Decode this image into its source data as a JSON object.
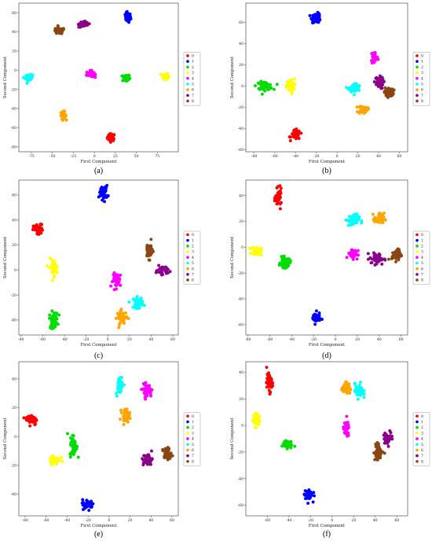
{
  "figure": {
    "subplot_count": 6,
    "captions": [
      "(a)",
      "(b)",
      "(c)",
      "(d)",
      "(e)",
      "(f)"
    ]
  },
  "chart_data": [
    {
      "caption": "(a)",
      "type": "scatter",
      "xlabel": "First Component",
      "ylabel": "Second Component",
      "xlim": [
        -90,
        100
      ],
      "ylim": [
        -85,
        70
      ],
      "xticks": [
        -75,
        -50,
        -25,
        0,
        25,
        50,
        75
      ],
      "yticks": [
        -80,
        -60,
        -40,
        -20,
        0,
        20,
        40,
        60
      ],
      "legend": {
        "position": "right",
        "entries": [
          "0",
          "1",
          "2",
          "3",
          "4",
          "5",
          "6",
          "7",
          "8"
        ]
      },
      "clusters": [
        {
          "label": "0",
          "center": [
            20,
            -70
          ],
          "spread": [
            4,
            3.5
          ],
          "count": 45
        },
        {
          "label": "1",
          "center": [
            40,
            55
          ],
          "spread": [
            3,
            4.5
          ],
          "count": 55
        },
        {
          "label": "2",
          "center": [
            38,
            -8
          ],
          "spread": [
            4,
            3.5
          ],
          "count": 50
        },
        {
          "label": "3",
          "center": [
            85,
            -6
          ],
          "spread": [
            3,
            3
          ],
          "count": 40
        },
        {
          "label": "4",
          "center": [
            -5,
            -4
          ],
          "spread": [
            4,
            3
          ],
          "count": 45
        },
        {
          "label": "5",
          "center": [
            -78,
            -8
          ],
          "spread": [
            4,
            3
          ],
          "count": 40
        },
        {
          "label": "6",
          "center": [
            -37,
            -47
          ],
          "spread": [
            3,
            3.5
          ],
          "count": 40
        },
        {
          "label": "7",
          "center": [
            -12,
            48
          ],
          "spread": [
            6,
            3
          ],
          "count": 50
        },
        {
          "label": "8",
          "center": [
            -42,
            41
          ],
          "spread": [
            6,
            3
          ],
          "count": 45
        }
      ]
    },
    {
      "caption": "(b)",
      "type": "scatter",
      "xlabel": "First Component",
      "ylabel": "Second Component",
      "xlim": [
        -88,
        68
      ],
      "ylim": [
        -62,
        78
      ],
      "xticks": [
        -80,
        -60,
        -40,
        -20,
        0,
        20,
        40,
        60
      ],
      "yticks": [
        -60,
        -40,
        -20,
        0,
        20,
        40,
        60
      ],
      "legend": {
        "position": "right",
        "entries": [
          "0",
          "1",
          "2",
          "3",
          "4",
          "5",
          "6",
          "7",
          "8"
        ]
      },
      "clusters": [
        {
          "label": "0",
          "center": [
            -40,
            -46
          ],
          "spread": [
            4,
            4
          ],
          "count": 45
        },
        {
          "label": "1",
          "center": [
            -20,
            64
          ],
          "spread": [
            4,
            4
          ],
          "count": 50
        },
        {
          "label": "2",
          "center": [
            -70,
            0
          ],
          "spread": [
            7,
            3.5
          ],
          "count": 55
        },
        {
          "label": "3",
          "center": [
            -45,
            0
          ],
          "spread": [
            3.5,
            6
          ],
          "count": 45
        },
        {
          "label": "4",
          "center": [
            36,
            27
          ],
          "spread": [
            3,
            6
          ],
          "count": 45
        },
        {
          "label": "5",
          "center": [
            17,
            -2
          ],
          "spread": [
            5,
            4
          ],
          "count": 45
        },
        {
          "label": "6",
          "center": [
            25,
            -22
          ],
          "spread": [
            4,
            3.5
          ],
          "count": 45
        },
        {
          "label": "7",
          "center": [
            40,
            3
          ],
          "spread": [
            4,
            5
          ],
          "count": 50
        },
        {
          "label": "8",
          "center": [
            50,
            -6
          ],
          "spread": [
            4,
            4
          ],
          "count": 45
        }
      ]
    },
    {
      "caption": "(c)",
      "type": "scatter",
      "xlabel": "First Component",
      "ylabel": "Second Component",
      "xlim": [
        -82,
        65
      ],
      "ylim": [
        -52,
        72
      ],
      "xticks": [
        -80,
        -60,
        -40,
        -20,
        0,
        20,
        40,
        60
      ],
      "yticks": [
        -40,
        -20,
        0,
        20,
        40,
        60
      ],
      "legend": {
        "position": "right",
        "entries": [
          "0",
          "1",
          "2",
          "3",
          "4",
          "5",
          "6",
          "7",
          "8"
        ]
      },
      "clusters": [
        {
          "label": "0",
          "center": [
            -64,
            32
          ],
          "spread": [
            4,
            4
          ],
          "count": 50
        },
        {
          "label": "1",
          "center": [
            -4,
            62
          ],
          "spread": [
            3.5,
            5
          ],
          "count": 50
        },
        {
          "label": "2",
          "center": [
            -50,
            -40
          ],
          "spread": [
            3.5,
            6
          ],
          "count": 45
        },
        {
          "label": "3",
          "center": [
            -50,
            2
          ],
          "spread": [
            3.5,
            6
          ],
          "count": 45
        },
        {
          "label": "4",
          "center": [
            9,
            -8
          ],
          "spread": [
            4,
            5
          ],
          "count": 45
        },
        {
          "label": "5",
          "center": [
            28,
            -26
          ],
          "spread": [
            4,
            4
          ],
          "count": 45
        },
        {
          "label": "6",
          "center": [
            13,
            -38
          ],
          "spread": [
            4,
            5
          ],
          "count": 50
        },
        {
          "label": "7",
          "center": [
            50,
            0
          ],
          "spread": [
            5,
            3
          ],
          "count": 45
        },
        {
          "label": "8",
          "center": [
            38,
            16
          ],
          "spread": [
            3,
            6
          ],
          "count": 45
        }
      ]
    },
    {
      "caption": "(d)",
      "type": "scatter",
      "xlabel": "First Component",
      "ylabel": "Second Component",
      "xlim": [
        -82,
        66
      ],
      "ylim": [
        -68,
        52
      ],
      "xticks": [
        -80,
        -60,
        -40,
        -20,
        0,
        20,
        40,
        60
      ],
      "yticks": [
        -60,
        -40,
        -20,
        0,
        20,
        40
      ],
      "legend": {
        "position": "right",
        "entries": [
          "0",
          "1",
          "2",
          "3",
          "4",
          "5",
          "6",
          "7",
          "8"
        ]
      },
      "clusters": [
        {
          "label": "0",
          "center": [
            -52,
            38
          ],
          "spread": [
            2.5,
            6
          ],
          "count": 45
        },
        {
          "label": "1",
          "center": [
            -18,
            -55
          ],
          "spread": [
            3.5,
            4
          ],
          "count": 50
        },
        {
          "label": "2",
          "center": [
            -46,
            -12
          ],
          "spread": [
            4,
            3.5
          ],
          "count": 50
        },
        {
          "label": "3",
          "center": [
            -72,
            -3
          ],
          "spread": [
            4,
            3
          ],
          "count": 45
        },
        {
          "label": "4",
          "center": [
            16,
            -5
          ],
          "spread": [
            4,
            3.5
          ],
          "count": 45
        },
        {
          "label": "5",
          "center": [
            16,
            21
          ],
          "spread": [
            5,
            4
          ],
          "count": 50
        },
        {
          "label": "6",
          "center": [
            40,
            22
          ],
          "spread": [
            4,
            4
          ],
          "count": 45
        },
        {
          "label": "7",
          "center": [
            38,
            -9
          ],
          "spread": [
            6,
            4
          ],
          "count": 50
        },
        {
          "label": "8",
          "center": [
            56,
            -6
          ],
          "spread": [
            4,
            4
          ],
          "count": 40
        }
      ]
    },
    {
      "caption": "(e)",
      "type": "scatter",
      "xlabel": "First Component",
      "ylabel": "Second Component",
      "xlim": [
        -86,
        66
      ],
      "ylim": [
        -55,
        52
      ],
      "xticks": [
        -80,
        -60,
        -40,
        -20,
        0,
        20,
        40,
        60
      ],
      "yticks": [
        -40,
        -20,
        0,
        20,
        40
      ],
      "legend": {
        "position": "right",
        "entries": [
          "0",
          "1",
          "2",
          "3",
          "4",
          "5",
          "6",
          "7",
          "8"
        ]
      },
      "clusters": [
        {
          "label": "0",
          "center": [
            -74,
            12
          ],
          "spread": [
            5,
            3.5
          ],
          "count": 50
        },
        {
          "label": "1",
          "center": [
            -20,
            -47
          ],
          "spread": [
            5,
            3
          ],
          "count": 50
        },
        {
          "label": "2",
          "center": [
            -34,
            -6
          ],
          "spread": [
            3,
            7
          ],
          "count": 50
        },
        {
          "label": "3",
          "center": [
            -52,
            -16
          ],
          "spread": [
            5,
            3
          ],
          "count": 45
        },
        {
          "label": "4",
          "center": [
            36,
            32
          ],
          "spread": [
            4,
            4
          ],
          "count": 45
        },
        {
          "label": "5",
          "center": [
            10,
            36
          ],
          "spread": [
            3,
            6
          ],
          "count": 45
        },
        {
          "label": "6",
          "center": [
            16,
            15
          ],
          "spread": [
            3.5,
            4
          ],
          "count": 45
        },
        {
          "label": "7",
          "center": [
            37,
            -16
          ],
          "spread": [
            4,
            4
          ],
          "count": 45
        },
        {
          "label": "8",
          "center": [
            55,
            -12
          ],
          "spread": [
            4,
            4
          ],
          "count": 45
        }
      ]
    },
    {
      "caption": "(f)",
      "type": "scatter",
      "xlabel": "First Component",
      "ylabel": "Second Component",
      "xlim": [
        -80,
        70
      ],
      "ylim": [
        -68,
        48
      ],
      "xticks": [
        -60,
        -40,
        -20,
        0,
        20,
        40,
        60
      ],
      "yticks": [
        -60,
        -40,
        -20,
        0,
        20,
        40
      ],
      "legend": {
        "position": "right",
        "entries": [
          "0",
          "1",
          "2",
          "3",
          "4",
          "5",
          "6",
          "7",
          "8"
        ]
      },
      "clusters": [
        {
          "label": "0",
          "center": [
            -58,
            32
          ],
          "spread": [
            2.5,
            6
          ],
          "count": 45
        },
        {
          "label": "1",
          "center": [
            -22,
            -52
          ],
          "spread": [
            3.5,
            4
          ],
          "count": 50
        },
        {
          "label": "2",
          "center": [
            -42,
            -14
          ],
          "spread": [
            4,
            3
          ],
          "count": 45
        },
        {
          "label": "3",
          "center": [
            -70,
            4
          ],
          "spread": [
            3,
            4.5
          ],
          "count": 45
        },
        {
          "label": "4",
          "center": [
            13,
            -3
          ],
          "spread": [
            2.5,
            5
          ],
          "count": 40
        },
        {
          "label": "5",
          "center": [
            25,
            26
          ],
          "spread": [
            3.5,
            5
          ],
          "count": 45
        },
        {
          "label": "6",
          "center": [
            13,
            28
          ],
          "spread": [
            3.5,
            4
          ],
          "count": 45
        },
        {
          "label": "7",
          "center": [
            52,
            -9
          ],
          "spread": [
            4,
            4
          ],
          "count": 45
        },
        {
          "label": "8",
          "center": [
            43,
            -20
          ],
          "spread": [
            4,
            6
          ],
          "count": 45
        }
      ]
    }
  ],
  "palette": {
    "0": "#ff0000",
    "1": "#0000ff",
    "2": "#00dd00",
    "3": "#ffff00",
    "4": "#ff00ff",
    "5": "#00ffff",
    "6": "#ffa500",
    "7": "#8b008b",
    "8": "#8b4513"
  }
}
